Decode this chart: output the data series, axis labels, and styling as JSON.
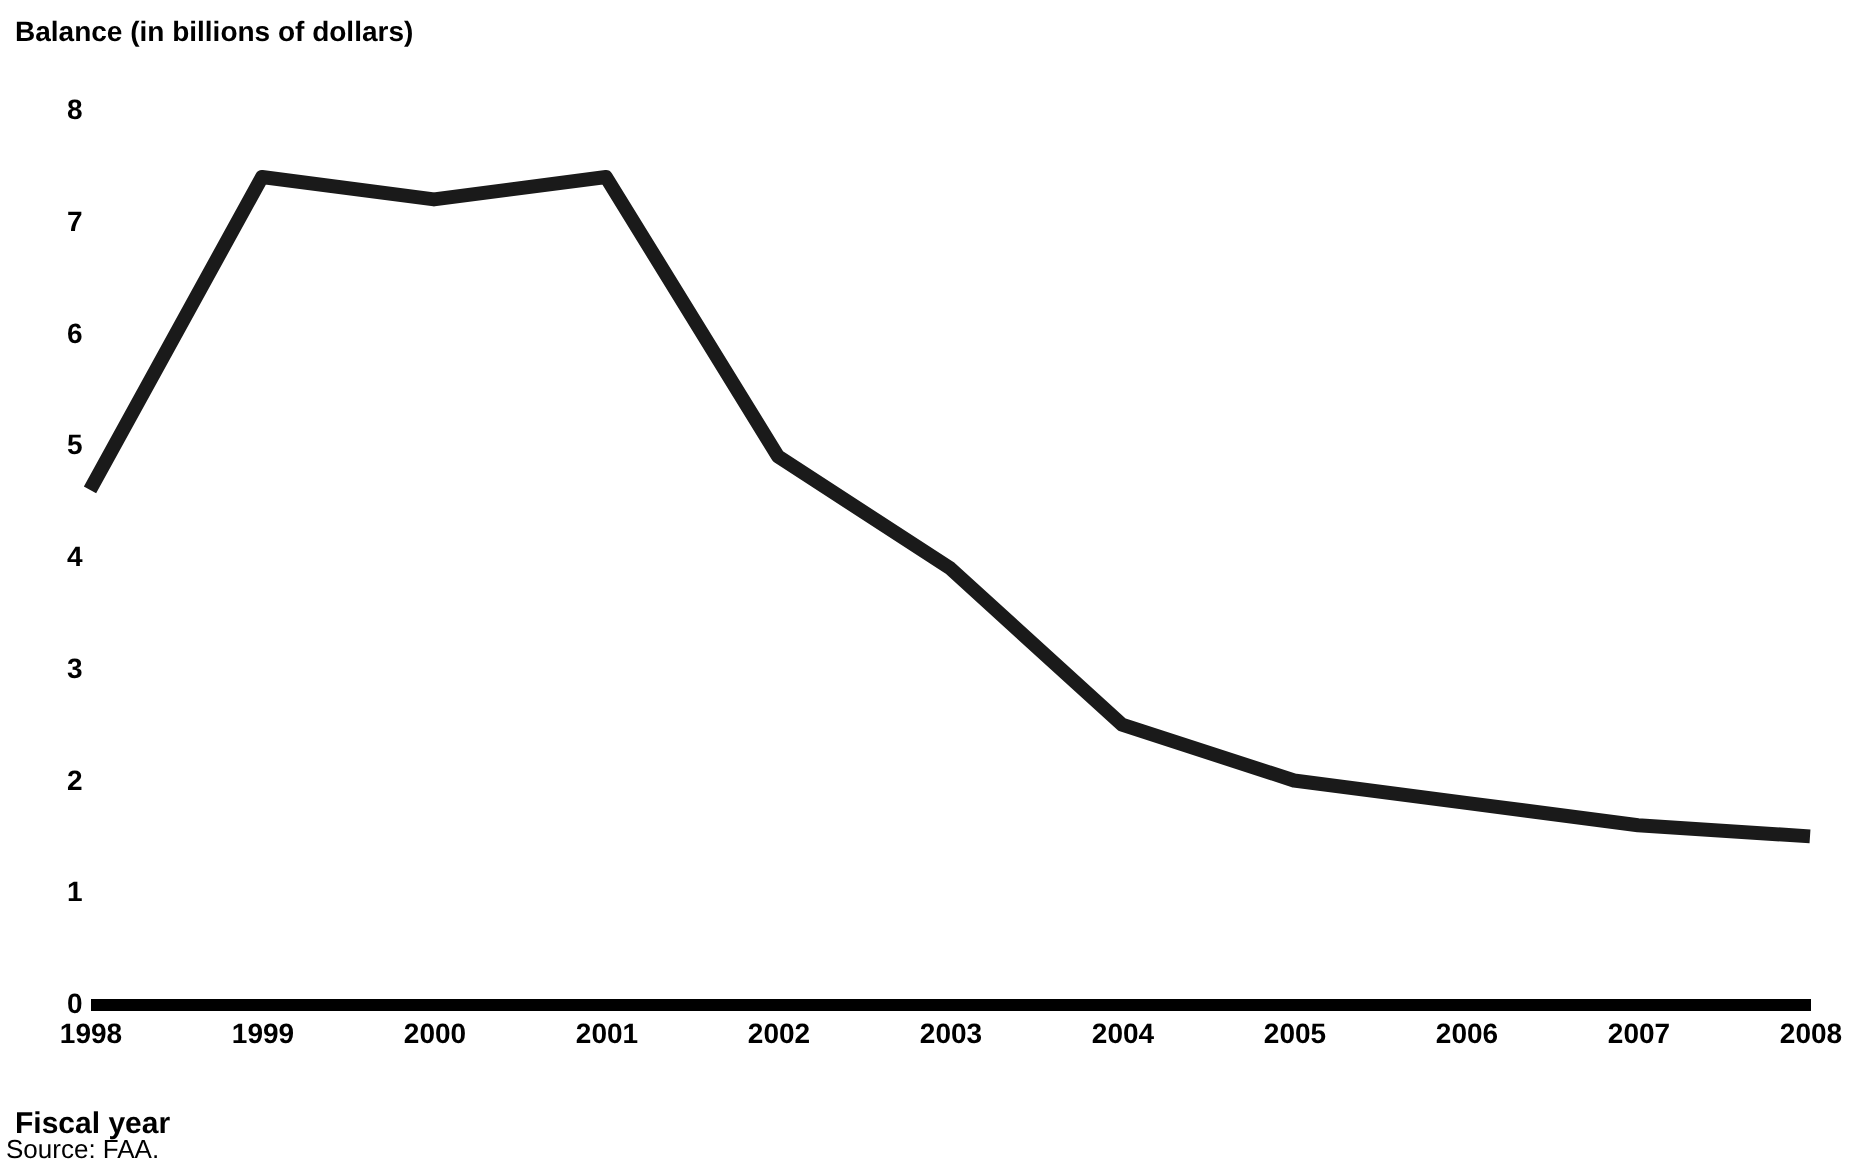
{
  "chart_data": {
    "type": "line",
    "ylabel": "Balance (in billions of dollars)",
    "xlabel": "Fiscal year",
    "annotations": [
      "Source: FAA."
    ],
    "x": [
      1998,
      1999,
      2000,
      2001,
      2002,
      2003,
      2004,
      2005,
      2006,
      2007,
      2008
    ],
    "series": [
      {
        "color": "#1a1a1a",
        "values": [
          4.6,
          7.4,
          7.2,
          7.4,
          4.9,
          3.9,
          2.5,
          2.0,
          1.8,
          1.6,
          1.5
        ]
      }
    ],
    "xlim": [
      1998,
      2008
    ],
    "xticks": [
      1998,
      1999,
      2000,
      2001,
      2002,
      2003,
      2004,
      2005,
      2006,
      2007,
      2008
    ],
    "ylim": [
      0,
      8
    ],
    "yticks": [
      0,
      1,
      2,
      3,
      4,
      5,
      6,
      7,
      8
    ],
    "grid": false,
    "legend": false,
    "marker": "none",
    "line_style": "solid"
  }
}
